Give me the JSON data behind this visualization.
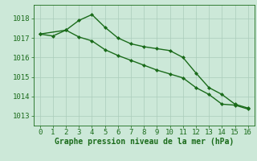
{
  "series1_x": [
    0,
    1,
    2,
    3,
    4,
    5,
    6,
    7,
    8,
    9,
    10,
    11,
    12,
    13,
    14,
    15,
    16
  ],
  "series1_y": [
    1017.2,
    1017.1,
    1017.4,
    1017.9,
    1018.2,
    1017.55,
    1017.0,
    1016.7,
    1016.55,
    1016.45,
    1016.35,
    1016.0,
    1015.2,
    1014.45,
    1014.1,
    1013.6,
    1013.4
  ],
  "series2_x": [
    0,
    2,
    3,
    4,
    5,
    6,
    7,
    8,
    9,
    10,
    11,
    12,
    13,
    14,
    15,
    16
  ],
  "series2_y": [
    1017.2,
    1017.4,
    1017.05,
    1016.85,
    1016.4,
    1016.1,
    1015.85,
    1015.6,
    1015.35,
    1015.15,
    1014.95,
    1014.45,
    1014.1,
    1013.6,
    1013.55,
    1013.35
  ],
  "line_color": "#1a6b1a",
  "bg_color": "#cce8d8",
  "grid_color": "#aaccbb",
  "xlabel": "Graphe pression niveau de la mer (hPa)",
  "yticks": [
    1013,
    1014,
    1015,
    1016,
    1017,
    1018
  ],
  "xticks": [
    0,
    1,
    2,
    3,
    4,
    5,
    6,
    7,
    8,
    9,
    10,
    11,
    12,
    13,
    14,
    15,
    16
  ],
  "ylim": [
    1012.5,
    1018.7
  ],
  "xlim": [
    -0.5,
    16.5
  ],
  "marker": "D",
  "markersize": 2.0,
  "linewidth": 1.0,
  "tick_fontsize": 6.5,
  "xlabel_fontsize": 7.0
}
